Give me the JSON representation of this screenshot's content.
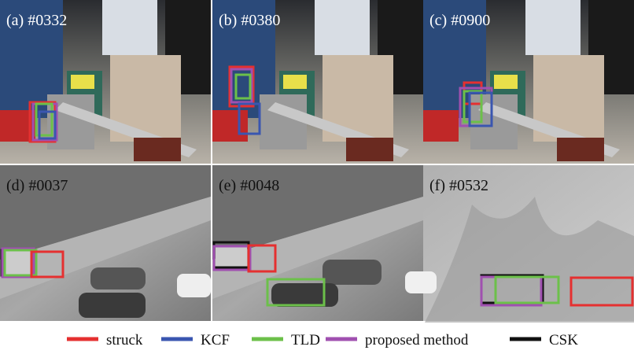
{
  "panels": [
    {
      "label": "(a) #0332"
    },
    {
      "label": "(b) #0380"
    },
    {
      "label": "(c) #0900"
    },
    {
      "label": "(d) #0037"
    },
    {
      "label": "(e) #0048"
    },
    {
      "label": "(f) #0532"
    }
  ],
  "legend": [
    {
      "name": "struck",
      "color": "#e53030"
    },
    {
      "name": "KCF",
      "color": "#3a56b0"
    },
    {
      "name": "TLD",
      "color": "#6cc04a"
    },
    {
      "name": "proposed method",
      "color": "#a050b0"
    },
    {
      "name": "CSK",
      "color": "#111111"
    }
  ]
}
